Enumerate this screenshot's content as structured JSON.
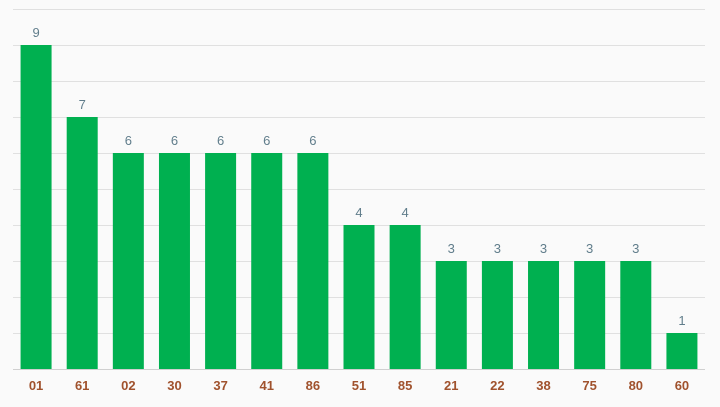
{
  "chart_data": {
    "type": "bar",
    "categories": [
      "01",
      "61",
      "02",
      "30",
      "37",
      "41",
      "86",
      "51",
      "85",
      "21",
      "22",
      "38",
      "75",
      "80",
      "60"
    ],
    "values": [
      9,
      7,
      6,
      6,
      6,
      6,
      6,
      4,
      4,
      3,
      3,
      3,
      3,
      3,
      1
    ],
    "title": "",
    "xlabel": "",
    "ylabel": "",
    "ylim": [
      0,
      10
    ],
    "grid": true,
    "data_labels": true,
    "colors": {
      "bar": "#00b050",
      "value_label": "#607d8b",
      "category_label": "#a0522d",
      "gridline": "#e0e0e0",
      "background": "#fafafa"
    }
  }
}
